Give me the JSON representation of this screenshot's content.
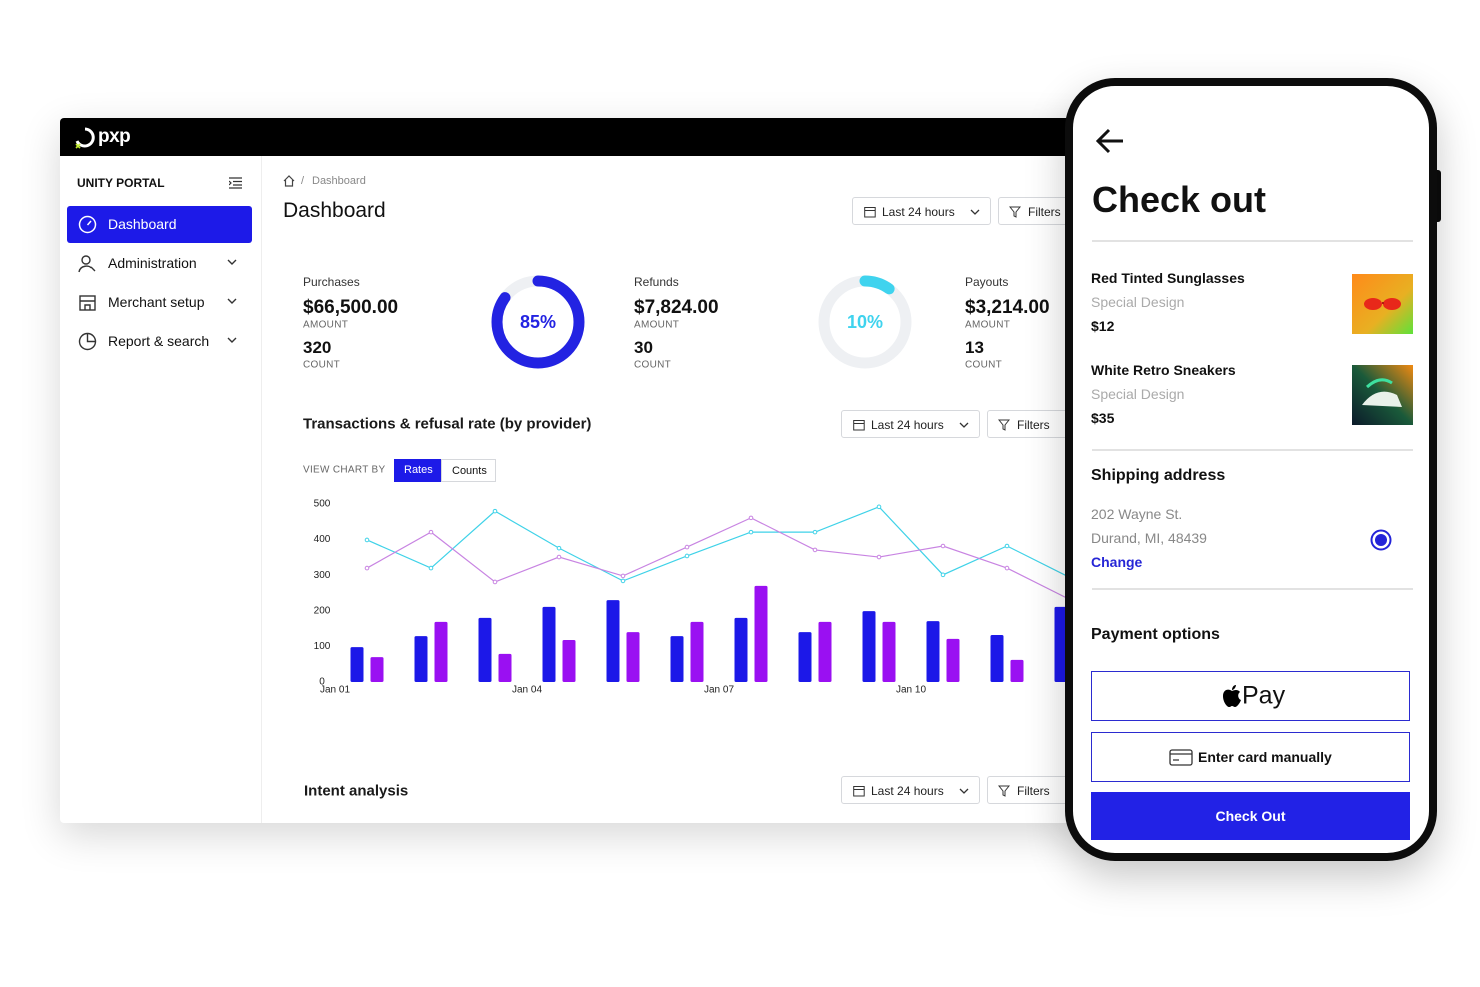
{
  "chart_data": {
    "type": "bar",
    "categories": [
      "Jan 01",
      null,
      null,
      "Jan 04",
      null,
      null,
      "Jan 07",
      null,
      null,
      "Jan 10",
      null,
      null
    ],
    "series": [
      {
        "type": "bar",
        "color": "#1c18e8",
        "values": [
          98,
          129,
          180,
          211,
          230,
          129,
          180,
          140,
          199,
          171,
          132,
          211
        ]
      },
      {
        "type": "bar",
        "color": "#9a10f2",
        "values": [
          70,
          169,
          79,
          118,
          140,
          169,
          270,
          169,
          169,
          121,
          62,
          null
        ]
      },
      {
        "type": "line",
        "color": "#3fd2e8",
        "values": [
          399,
          320,
          480,
          376,
          284,
          354,
          421,
          421,
          492,
          301,
          382,
          292
        ]
      },
      {
        "type": "line",
        "color": "#c884e2",
        "values": [
          320,
          421,
          281,
          351,
          298,
          379,
          461,
          371,
          351,
          382,
          320,
          230
        ]
      }
    ],
    "ylim": [
      0,
      500
    ],
    "yticks": [
      0,
      100,
      200,
      300,
      400,
      500
    ],
    "grid": false
  },
  "dashboard": {
    "logo": "pxp",
    "sidebar": {
      "title": "UNITY PORTAL",
      "nav": [
        "Dashboard",
        "Administration",
        "Merchant setup",
        "Report & search"
      ]
    },
    "breadcrumb": "Dashboard",
    "title": "Dashboard",
    "date_filter": "Last 24 hours",
    "filters": "Filters",
    "stats": [
      {
        "label": "Purchases",
        "amount": "$66,500.00",
        "amount_caption": "AMOUNT",
        "count": 320,
        "count_caption": "COUNT",
        "donut": {
          "value": 85,
          "label": "85%",
          "color": "#2323e2"
        }
      },
      {
        "label": "Refunds",
        "amount": "$7,824.00",
        "amount_caption": "AMOUNT",
        "count": 30,
        "count_caption": "COUNT",
        "donut": {
          "value": 10,
          "label": "10%",
          "color": "#3fd3ee"
        }
      },
      {
        "label": "Payouts",
        "amount": "$3,214.00",
        "amount_caption": "AMOUNT",
        "count": 13,
        "count_caption": "COUNT"
      }
    ],
    "transactions": {
      "title": "Transactions & refusal rate (by provider)",
      "date_filter": "Last 24 hours",
      "filters": "Filters",
      "view_by": "VIEW CHART BY",
      "toggle": [
        "Rates",
        "Counts"
      ]
    },
    "intent": {
      "title": "Intent analysis",
      "date_filter": "Last 24 hours",
      "filters": "Filters"
    }
  },
  "checkout": {
    "title": "Check out",
    "items": [
      {
        "name": "Red Tinted Sunglasses",
        "subtitle": "Special Design",
        "price": "$12"
      },
      {
        "name": "White Retro Sneakers",
        "subtitle": "Special Design",
        "price": "$35"
      }
    ],
    "shipping": {
      "title": "Shipping address",
      "lines": [
        "202 Wayne St.",
        "Durand, MI, 48439"
      ],
      "action": "Change"
    },
    "payment": {
      "title": "Payment options",
      "apple_pay": "Pay",
      "card": "Enter card manually",
      "submit": "Check Out"
    }
  }
}
